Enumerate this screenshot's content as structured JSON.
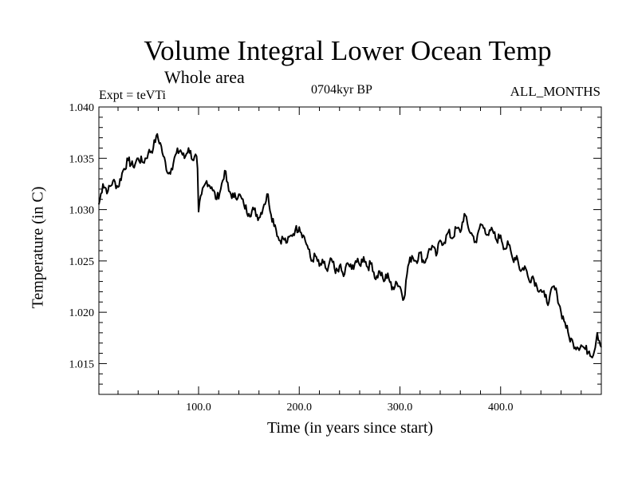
{
  "chart_data": {
    "type": "line",
    "title": "Volume Integral Lower Ocean Temp",
    "subtitle": "Whole area",
    "annotations": {
      "left": "Expt = teVTi",
      "center": "0704kyr BP",
      "right": "ALL_MONTHS"
    },
    "xlabel": "Time (in years since start)",
    "ylabel": "Temperature (in C)",
    "xlim": [
      1,
      500
    ],
    "ylim": [
      1.012,
      1.04
    ],
    "xticks": [
      100,
      200,
      300,
      400
    ],
    "xtick_labels": [
      "100.0",
      "200.0",
      "300.0",
      "400.0"
    ],
    "yticks": [
      1.015,
      1.02,
      1.025,
      1.03,
      1.035,
      1.04
    ],
    "ytick_labels": [
      "1.015",
      "1.020",
      "1.025",
      "1.030",
      "1.035",
      "1.040"
    ],
    "grid": false,
    "series": [
      {
        "x": [
          1,
          5,
          10,
          15,
          20,
          25,
          30,
          35,
          40,
          45,
          50,
          55,
          58,
          62,
          65,
          70,
          73,
          78,
          82,
          86,
          90,
          95,
          98,
          99,
          100,
          103,
          108,
          113,
          118,
          122,
          126,
          130,
          135,
          140,
          145,
          150,
          155,
          160,
          165,
          169,
          172,
          176,
          180,
          184,
          188,
          192,
          196,
          200,
          204,
          208,
          212,
          216,
          220,
          224,
          228,
          232,
          236,
          240,
          244,
          248,
          252,
          256,
          260,
          264,
          268,
          272,
          276,
          280,
          284,
          288,
          292,
          296,
          300,
          304,
          308,
          312,
          316,
          320,
          324,
          328,
          332,
          336,
          340,
          344,
          348,
          352,
          356,
          360,
          364,
          368,
          372,
          376,
          380,
          384,
          388,
          392,
          396,
          400,
          404,
          408,
          412,
          416,
          420,
          424,
          428,
          432,
          436,
          440,
          444,
          448,
          452,
          456,
          460,
          464,
          468,
          472,
          476,
          480,
          484,
          488,
          492,
          496,
          500
        ],
        "y": [
          1.0305,
          1.0325,
          1.0318,
          1.0328,
          1.0322,
          1.0338,
          1.0348,
          1.0342,
          1.035,
          1.0346,
          1.0355,
          1.036,
          1.0372,
          1.0365,
          1.0352,
          1.0335,
          1.034,
          1.0355,
          1.0358,
          1.035,
          1.036,
          1.0348,
          1.0352,
          1.034,
          1.0298,
          1.0315,
          1.0328,
          1.0322,
          1.031,
          1.032,
          1.0338,
          1.0318,
          1.0312,
          1.0315,
          1.0305,
          1.0296,
          1.03,
          1.0292,
          1.0305,
          1.0315,
          1.0295,
          1.0285,
          1.027,
          1.0272,
          1.0268,
          1.0275,
          1.028,
          1.0283,
          1.0275,
          1.0265,
          1.025,
          1.0255,
          1.0245,
          1.0248,
          1.024,
          1.0252,
          1.0238,
          1.0245,
          1.0235,
          1.0248,
          1.0242,
          1.025,
          1.0246,
          1.0254,
          1.0244,
          1.0248,
          1.0232,
          1.024,
          1.023,
          1.0238,
          1.0222,
          1.023,
          1.0225,
          1.0213,
          1.0245,
          1.0255,
          1.025,
          1.0258,
          1.0248,
          1.0258,
          1.0265,
          1.0255,
          1.027,
          1.0268,
          1.0278,
          1.0272,
          1.0282,
          1.0278,
          1.0296,
          1.0282,
          1.0275,
          1.0268,
          1.0286,
          1.0282,
          1.0275,
          1.028,
          1.027,
          1.0275,
          1.0262,
          1.0266,
          1.0252,
          1.0255,
          1.024,
          1.0245,
          1.0232,
          1.0235,
          1.0225,
          1.0222,
          1.0215,
          1.021,
          1.0225,
          1.0218,
          1.02,
          1.019,
          1.0176,
          1.017,
          1.0166,
          1.0168,
          1.0164,
          1.0162,
          1.0158,
          1.018,
          1.0166
        ]
      }
    ]
  }
}
